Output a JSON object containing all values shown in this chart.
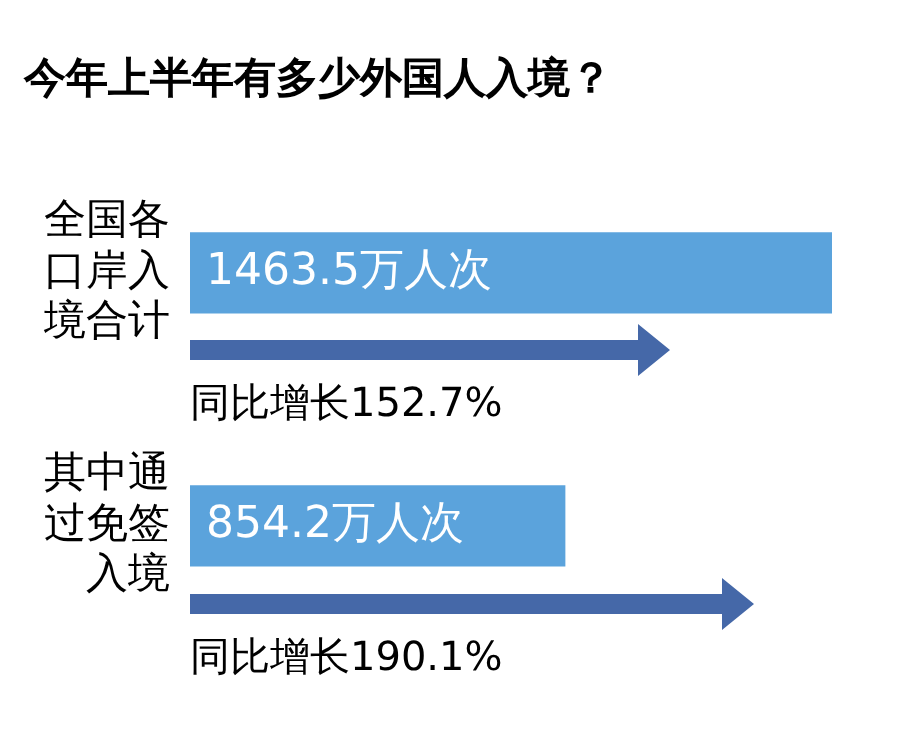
{
  "chart_data": {
    "type": "bar",
    "orientation": "horizontal",
    "title": "今年上半年有多少外国人入境？",
    "categories": [
      "全国各口岸入境合计",
      "其中通过免签入境"
    ],
    "values": [
      1463.5,
      854.2
    ],
    "value_labels": [
      "1463.5万人次",
      "854.2万人次"
    ],
    "color": "#5ba3dc",
    "annotations": [
      "同比增长152.7%",
      "同比增长190.1%"
    ],
    "legend": false
  }
}
